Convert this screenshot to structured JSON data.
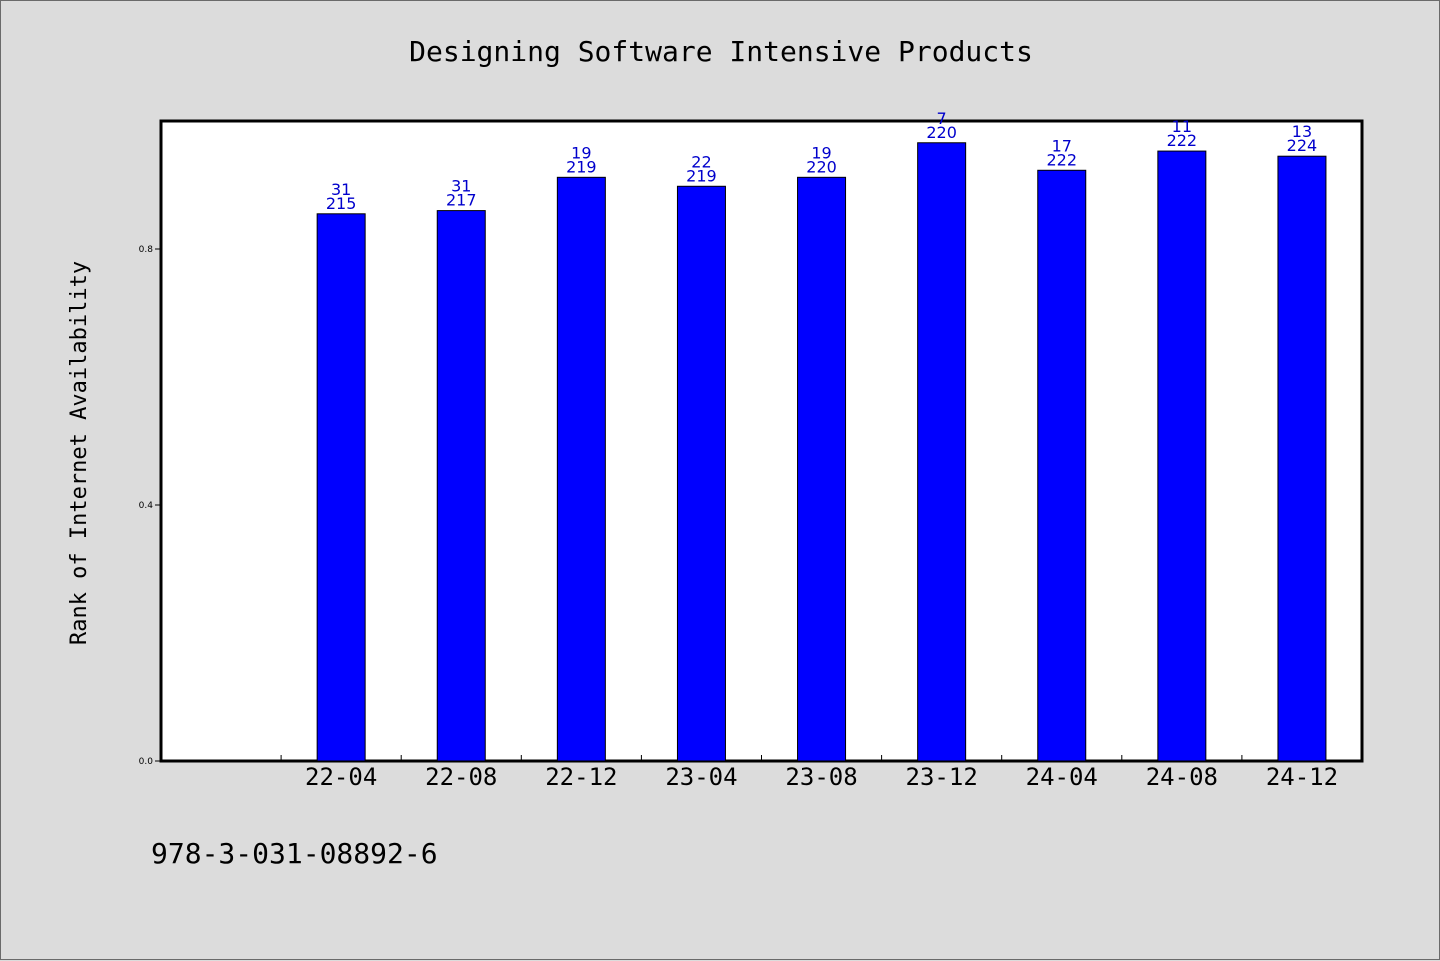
{
  "chart_data": {
    "type": "bar",
    "title": "Designing Software Intensive Products",
    "xlabel": "",
    "ylabel": "Rank of Internet Availability",
    "ylim": [
      0,
      1.0
    ],
    "yticks": [
      "0.0",
      "0.4",
      "0.8"
    ],
    "ytick_values": [
      0.0,
      0.4,
      0.8
    ],
    "grid": false,
    "categories": [
      "",
      "22-04",
      "22-08",
      "22-12",
      "23-04",
      "23-08",
      "23-12",
      "24-04",
      "24-08",
      "24-12"
    ],
    "values": [
      null,
      0.855,
      0.86,
      0.912,
      0.898,
      0.912,
      0.966,
      0.923,
      0.953,
      0.945
    ],
    "label_top": [
      "",
      "31",
      "31",
      "19",
      "22",
      "19",
      "7",
      "17",
      "11",
      "13"
    ],
    "label_bottom": [
      "",
      "215",
      "217",
      "219",
      "219",
      "220",
      "220",
      "222",
      "222",
      "224"
    ],
    "bar_color": "#0000ff",
    "label_color": "#0000cc",
    "footer": "978-3-031-08892-6"
  }
}
